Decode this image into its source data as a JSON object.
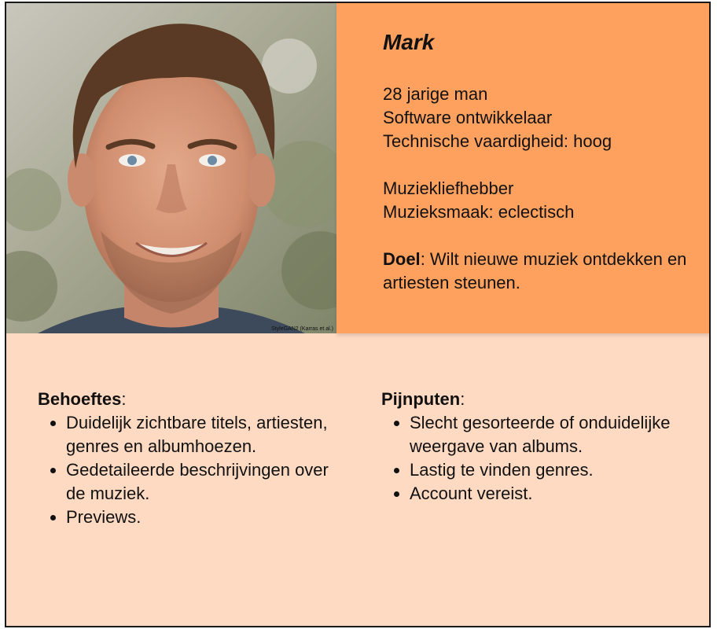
{
  "persona": {
    "name": "Mark",
    "photo_watermark": "StyleGAN2 (Karras et al.)",
    "details": [
      "28 jarige man",
      "Software ontwikkelaar",
      "Technische vaardigheid: hoog"
    ],
    "interests": [
      "Muziekliefhebber",
      "Muzieksmaak: eclectisch"
    ],
    "goal_label": "Doel",
    "goal_text": ": Wilt nieuwe muziek ontdekken en artiesten steunen."
  },
  "needs": {
    "title": "Behoeftes",
    "colon": ":",
    "items": [
      "Duidelijk zichtbare titels, artiesten, genres en albumhoezen.",
      "Gedetaileerde beschrijvingen over de muziek.",
      "Previews."
    ]
  },
  "pain_points": {
    "title": "Pijnputen",
    "colon": ":",
    "items": [
      "Slecht gesorteerde of onduidelijke weergave van albums.",
      "Lastig te vinden genres.",
      "Account vereist."
    ]
  },
  "colors": {
    "profile_bg": "#ffa15e",
    "card_bg": "#ffdac2",
    "border": "#1a1a1a"
  }
}
